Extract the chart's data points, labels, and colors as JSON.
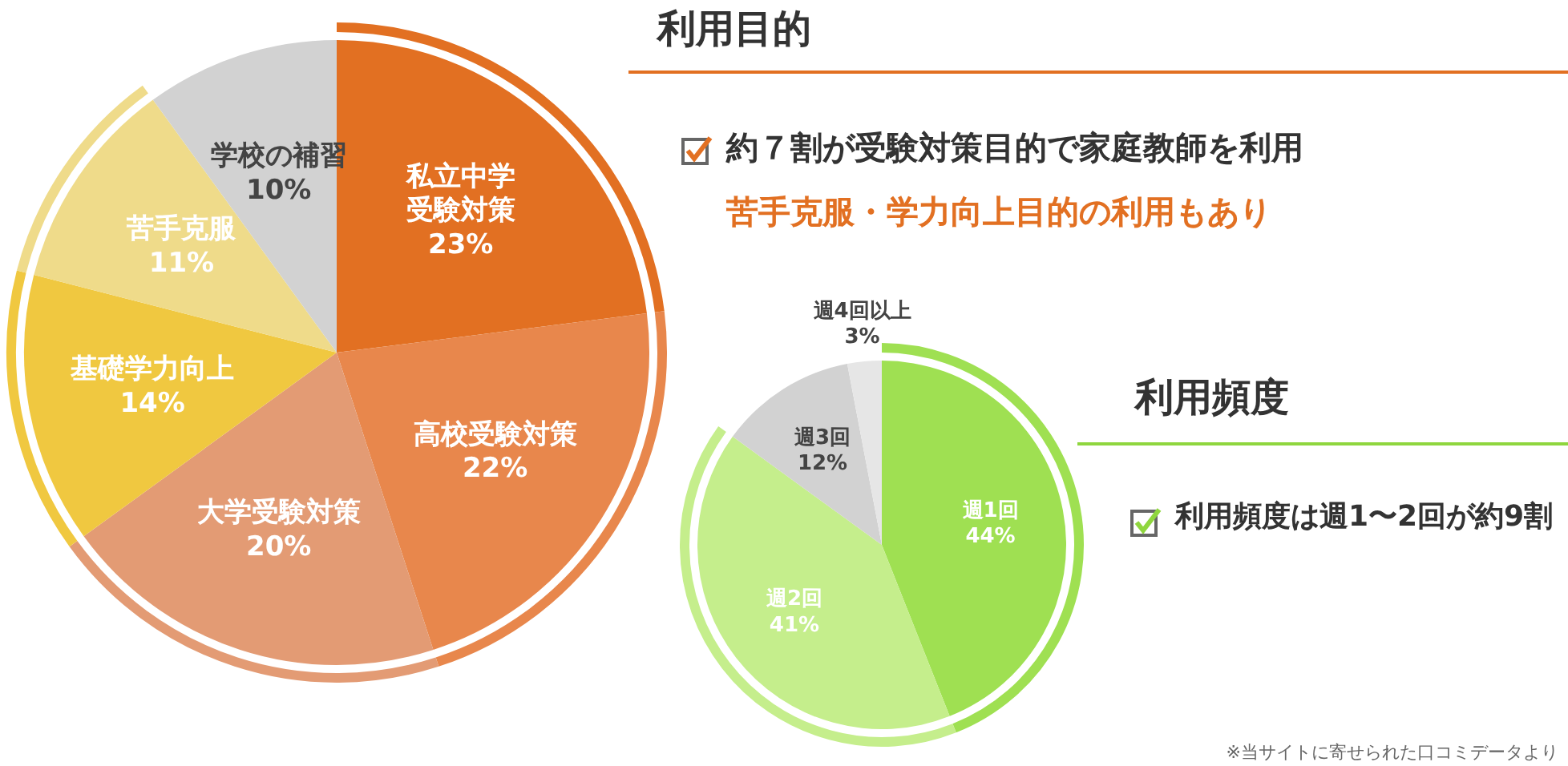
{
  "chart_data": [
    {
      "type": "pie",
      "title": "利用目的",
      "categories": [
        "私立中学受験対策",
        "高校受験対策",
        "大学受験対策",
        "基礎学力向上",
        "苦手克服",
        "学校の補習"
      ],
      "values": [
        23,
        22,
        20,
        14,
        11,
        10
      ],
      "colors": [
        "#e27022",
        "#e8874c",
        "#e39b74",
        "#f0c840",
        "#efdb8a",
        "#d2d2d2"
      ],
      "value_labels": [
        "23%",
        "22%",
        "20%",
        "14%",
        "11%",
        "10%"
      ],
      "legend": false,
      "annotations": [
        "約７割が受験対策目的で家庭教師を利用",
        "苦手克服・学力向上目的の利用もあり"
      ]
    },
    {
      "type": "pie",
      "title": "利用頻度",
      "categories": [
        "週1回",
        "週2回",
        "週3回",
        "週4回以上"
      ],
      "values": [
        44,
        41,
        12,
        3
      ],
      "colors": [
        "#9fe052",
        "#c5ee8c",
        "#d2d2d2",
        "#e6e6e6"
      ],
      "value_labels": [
        "44%",
        "41%",
        "12%",
        "3%"
      ],
      "legend": false,
      "annotations": [
        "利用頻度は週1〜2回が約9割",
        "※当サイトに寄せられた口コミデータより"
      ]
    }
  ]
}
